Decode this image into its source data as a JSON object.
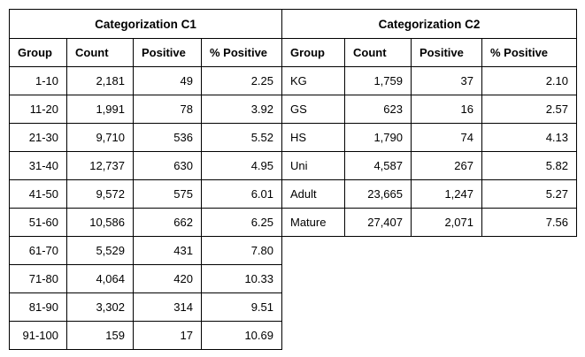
{
  "colors": {
    "border": "#000000",
    "text": "#000000",
    "background": "#ffffff"
  },
  "table_c1": {
    "title": "Categorization C1",
    "columns": [
      "Group",
      "Count",
      "Positive",
      "% Positive"
    ],
    "rows": [
      [
        "1-10",
        "2,181",
        "49",
        "2.25"
      ],
      [
        "11-20",
        "1,991",
        "78",
        "3.92"
      ],
      [
        "21-30",
        "9,710",
        "536",
        "5.52"
      ],
      [
        "31-40",
        "12,737",
        "630",
        "4.95"
      ],
      [
        "41-50",
        "9,572",
        "575",
        "6.01"
      ],
      [
        "51-60",
        "10,586",
        "662",
        "6.25"
      ],
      [
        "61-70",
        "5,529",
        "431",
        "7.80"
      ],
      [
        "71-80",
        "4,064",
        "420",
        "10.33"
      ],
      [
        "81-90",
        "3,302",
        "314",
        "9.51"
      ],
      [
        "91-100",
        "159",
        "17",
        "10.69"
      ]
    ]
  },
  "table_c2": {
    "title": "Categorization C2",
    "columns": [
      "Group",
      "Count",
      "Positive",
      "% Positive"
    ],
    "rows": [
      [
        "KG",
        "1,759",
        "37",
        "2.10"
      ],
      [
        "GS",
        "623",
        "16",
        "2.57"
      ],
      [
        "HS",
        "1,790",
        "74",
        "4.13"
      ],
      [
        "Uni",
        "4,587",
        "267",
        "5.82"
      ],
      [
        "Adult",
        "23,665",
        "1,247",
        "5.27"
      ],
      [
        "Mature",
        "27,407",
        "2,071",
        "7.56"
      ]
    ]
  }
}
